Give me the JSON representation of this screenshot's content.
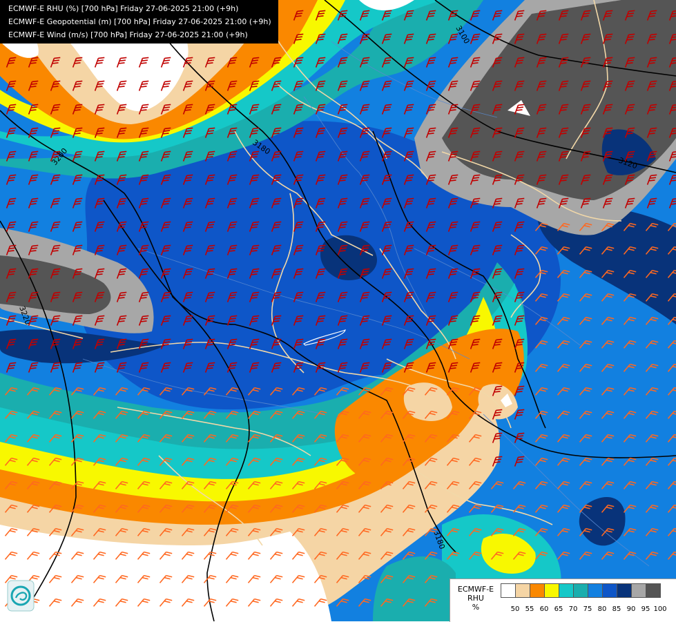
{
  "header": {
    "lines": [
      "ECMWF-E RHU (%) [700 hPa] Friday 27-06-2025 21:00 (+9h)",
      "ECMWF-E Geopotential (m) [700 hPa] Friday 27-06-2025 21:00 (+9h)",
      "ECMWF-E Wind (m/s) [700 hPa] Friday 27-06-2025 21:00 (+9h)"
    ]
  },
  "contour_labels": [
    "3100",
    "3180",
    "3120",
    "3200",
    "3220",
    "3180"
  ],
  "legend": {
    "model": "ECMWF-E",
    "variable": "RHU",
    "unit": "%",
    "ticks": [
      "50",
      "55",
      "60",
      "65",
      "70",
      "75",
      "80",
      "85",
      "90",
      "95",
      "100"
    ],
    "colors": [
      "#ffffff",
      "#f5d5a5",
      "#fa8800",
      "#f8f800",
      "#15c8c8",
      "#1aaeae",
      "#1280e0",
      "#0e56c8",
      "#08337a",
      "#a7a7a7",
      "#555555"
    ]
  },
  "colors": {
    "wind_barb_high": "#c00000",
    "wind_barb_low": "#ff6820",
    "geopotential_contour": "#000000",
    "borders": "#f2d8a8",
    "rivers": "#5a8ad0"
  }
}
